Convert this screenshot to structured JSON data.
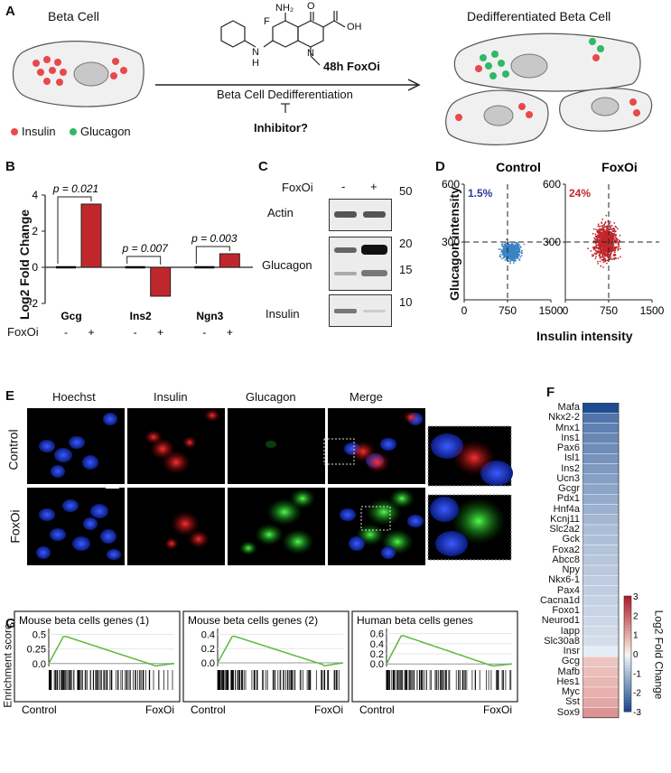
{
  "panelA": {
    "letter": "A",
    "beta_cell": "Beta Cell",
    "dediff_cell": "Dedifferentiated Beta Cell",
    "drug_label": "48h FoxOi",
    "arrow_label": "Beta Cell Dedifferentiation",
    "inhibitor": "Inhibitor?",
    "legend_insulin": "Insulin",
    "legend_glucagon": "Glucagon",
    "chem_nh2": "NH₂",
    "chem_o": "O",
    "chem_oh": "OH",
    "chem_f": "F",
    "chem_n": "N",
    "chem_h": "H",
    "colors": {
      "insulin": "#e8494c",
      "glucagon": "#2fb866",
      "nucleus": "#c8c8c8"
    }
  },
  "panelB": {
    "letter": "B",
    "ylabel": "Log2 Fold Change",
    "foxoi_label": "FoxOi",
    "chart_data": {
      "type": "bar",
      "categories": [
        "Gcg",
        "Ins2",
        "Ngn3"
      ],
      "series": [
        {
          "name": "-",
          "values": [
            0,
            0,
            0
          ]
        },
        {
          "name": "+",
          "values": [
            3.5,
            -1.6,
            0.75
          ]
        }
      ],
      "pvalues": [
        "p = 0.021",
        "p = 0.007",
        "p = 0.003"
      ],
      "ylim": [
        -2,
        4
      ],
      "yticks": [
        "-2",
        "0",
        "2",
        "4"
      ],
      "minus": "-",
      "plus": "+"
    }
  },
  "panelC": {
    "letter": "C",
    "foxoi": "FoxOi",
    "minus": "-",
    "plus": "+",
    "rows": [
      "Actin",
      "Glucagon",
      "Insulin"
    ],
    "mw": [
      "50",
      "20",
      "15",
      "10"
    ]
  },
  "panelD": {
    "letter": "D",
    "ylabel": "Glucagon intensity",
    "xlabel": "Insulin intensity",
    "chart_data": [
      {
        "type": "scatter",
        "title": "Control",
        "percent": "1.5%",
        "xlim": [
          0,
          1500
        ],
        "ylim": [
          0,
          600
        ],
        "xticks": [
          "0",
          "750",
          "1500"
        ],
        "yticks": [
          "300",
          "600"
        ],
        "threshold_x": 750,
        "threshold_y": 300
      },
      {
        "type": "scatter",
        "title": "FoxOi",
        "percent": "24%",
        "xlim": [
          0,
          1500
        ],
        "ylim": [
          0,
          600
        ],
        "xticks": [
          "0",
          "750",
          "1500"
        ],
        "yticks": [
          "300",
          "600"
        ],
        "threshold_x": 750,
        "threshold_y": 300
      }
    ]
  },
  "panelE": {
    "letter": "E",
    "columns": [
      "Hoechst",
      "Insulin",
      "Glucagon",
      "Merge"
    ],
    "rows": [
      "Control",
      "FoxOi"
    ]
  },
  "panelF": {
    "letter": "F",
    "legend_title": "Log2 Fold Change",
    "legend_ticks": [
      "3",
      "2",
      "1",
      "0",
      "-1",
      "-2",
      "-3"
    ],
    "chart_data": {
      "type": "heatmap",
      "genes": [
        "Mafa",
        "Nkx2-2",
        "Mnx1",
        "Ins1",
        "Pax6",
        "Isl1",
        "Ins2",
        "Ucn3",
        "Gcgr",
        "Pdx1",
        "Hnf4a",
        "Kcnj11",
        "Slc2a2",
        "Gck",
        "Foxa2",
        "Abcc8",
        "Npy",
        "Nkx6-1",
        "Pax4",
        "Cacna1d",
        "Foxo1",
        "Neurod1",
        "Iapp",
        "Slc30a8",
        "Insr",
        "Gcg",
        "Mafb",
        "Hes1",
        "Myc",
        "Sst",
        "Sox9"
      ],
      "values": [
        -2.9,
        -2.2,
        -2.0,
        -1.9,
        -1.8,
        -1.7,
        -1.6,
        -1.5,
        -1.4,
        -1.3,
        -1.2,
        -1.1,
        -1.0,
        -0.95,
        -0.9,
        -0.85,
        -0.8,
        -0.75,
        -0.7,
        -0.65,
        -0.6,
        -0.55,
        -0.5,
        -0.45,
        -0.2,
        0.6,
        0.7,
        0.8,
        0.9,
        1.0,
        1.3
      ],
      "range": [
        -3,
        3
      ]
    }
  },
  "panelG": {
    "letter": "G",
    "ylabel": "Enrichment score",
    "control": "Control",
    "foxoi": "FoxOi",
    "chart_data": [
      {
        "type": "line",
        "title": "Mouse beta cells genes (1)",
        "yticks": [
          "0.5",
          "0.25",
          "0.0"
        ],
        "ylim": [
          -0.05,
          0.6
        ]
      },
      {
        "type": "line",
        "title": "Mouse beta cells genes (2)",
        "yticks": [
          "0.4",
          "0.2",
          "0.0"
        ],
        "ylim": [
          -0.05,
          0.48
        ]
      },
      {
        "type": "line",
        "title": "Human beta cells genes",
        "yticks": [
          "0.6",
          "0.4",
          "0.2",
          "0.0"
        ],
        "ylim": [
          -0.05,
          0.7
        ]
      }
    ]
  }
}
